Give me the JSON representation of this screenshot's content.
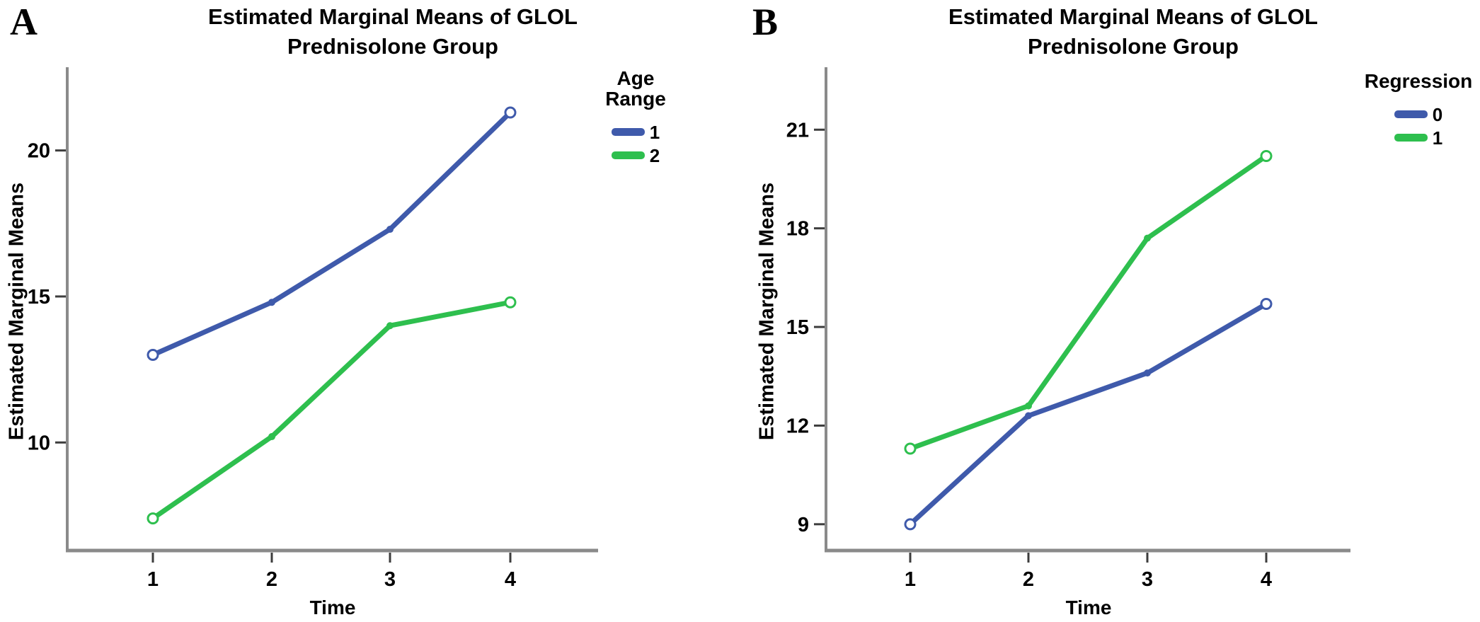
{
  "styles": {
    "axis_color": "#8a8a8a",
    "tick_color": "#3d3d3d",
    "text_color": "#000000",
    "blue": "#3f5aab",
    "green": "#2ebf4e",
    "background": "#ffffff"
  },
  "chart_data": [
    {
      "panel_label": "A",
      "type": "line",
      "title": "Estimated Marginal Means of GLOL",
      "subtitle": "Prednisolone Group",
      "xlabel": "Time",
      "ylabel": "Estimated Marginal Means",
      "x": [
        1,
        2,
        3,
        4
      ],
      "xticklabels": [
        "1",
        "2",
        "3",
        "4"
      ],
      "yticks": [
        10,
        15,
        20
      ],
      "yticklabels": [
        "10",
        "15",
        "20"
      ],
      "ylim": [
        6.3,
        22.85
      ],
      "grid": false,
      "legend": {
        "title_lines": [
          "Age",
          "Range"
        ],
        "position": "right",
        "entries": [
          {
            "label": "1",
            "color": "#3f5aab"
          },
          {
            "label": "2",
            "color": "#2ebf4e"
          }
        ]
      },
      "series": [
        {
          "name": "1",
          "color": "#3f5aab",
          "values": [
            13.0,
            14.8,
            17.3,
            21.3
          ]
        },
        {
          "name": "2",
          "color": "#2ebf4e",
          "values": [
            7.4,
            10.2,
            14.0,
            14.8
          ]
        }
      ]
    },
    {
      "panel_label": "B",
      "type": "line",
      "title": "Estimated Marginal Means of GLOL",
      "subtitle": "Prednisolone Group",
      "xlabel": "Time",
      "ylabel": "Estimated Marginal Means",
      "x": [
        1,
        2,
        3,
        4
      ],
      "xticklabels": [
        "1",
        "2",
        "3",
        "4"
      ],
      "yticks": [
        9,
        12,
        15,
        18,
        21
      ],
      "yticklabels": [
        "9",
        "12",
        "15",
        "18",
        "21"
      ],
      "ylim": [
        8.2,
        22.9
      ],
      "grid": false,
      "legend": {
        "title_lines": [
          "Regression"
        ],
        "position": "right",
        "entries": [
          {
            "label": "0",
            "color": "#3f5aab"
          },
          {
            "label": "1",
            "color": "#2ebf4e"
          }
        ]
      },
      "series": [
        {
          "name": "0",
          "color": "#3f5aab",
          "values": [
            9.0,
            12.3,
            13.6,
            15.7
          ]
        },
        {
          "name": "1",
          "color": "#2ebf4e",
          "values": [
            11.3,
            12.6,
            17.7,
            20.2
          ]
        }
      ]
    }
  ]
}
